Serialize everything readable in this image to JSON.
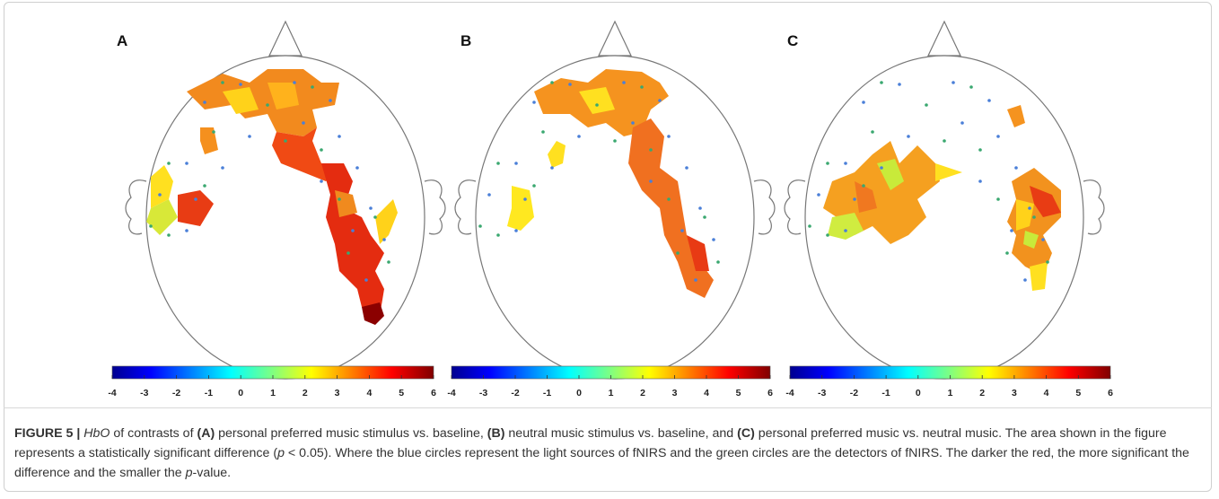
{
  "panels": [
    {
      "label": "A",
      "colorbar": {
        "ticks": [
          -4,
          -3,
          -2,
          -1,
          0,
          1,
          2,
          3,
          4,
          5,
          6
        ]
      }
    },
    {
      "label": "B",
      "colorbar": {
        "ticks": [
          -4,
          -3,
          -2,
          -1,
          0,
          1,
          2,
          3,
          4,
          5,
          6
        ]
      }
    },
    {
      "label": "C",
      "colorbar": {
        "ticks": [
          -4,
          -3,
          -2,
          -1,
          0,
          1,
          2,
          3,
          4,
          5,
          6
        ]
      }
    }
  ],
  "caption": {
    "segments": [
      {
        "text": "FIGURE 5 | ",
        "style": "bold"
      },
      {
        "text": "HbO",
        "style": "italic"
      },
      {
        "text": " of contrasts of ",
        "style": "normal"
      },
      {
        "text": "(A)",
        "style": "bold"
      },
      {
        "text": " personal preferred music stimulus vs. baseline, ",
        "style": "normal"
      },
      {
        "text": "(B)",
        "style": "bold"
      },
      {
        "text": " neutral music stimulus vs. baseline, and ",
        "style": "normal"
      },
      {
        "text": "(C)",
        "style": "bold"
      },
      {
        "text": " personal preferred music vs. neutral music. The area shown in the figure represents a statistically significant difference (",
        "style": "normal"
      },
      {
        "text": "p",
        "style": "italic"
      },
      {
        "text": " < 0.05). Where the blue circles represent the light sources of fNIRS and the green circles are the detectors of fNIRS. The darker the red, the more significant the difference and the smaller the ",
        "style": "normal"
      },
      {
        "text": "p",
        "style": "italic"
      },
      {
        "text": "-value.",
        "style": "normal"
      }
    ]
  }
}
